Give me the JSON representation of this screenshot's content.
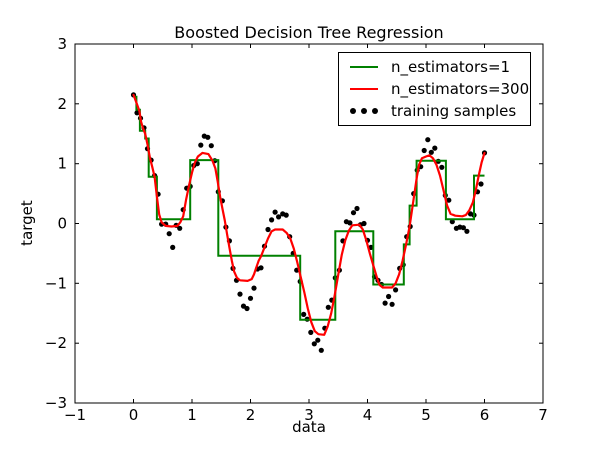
{
  "window": {
    "background": "#ffffff"
  },
  "chart_data": {
    "type": "line+scatter",
    "title": "Boosted Decision Tree Regression",
    "xlabel": "data",
    "ylabel": "target",
    "axes": {
      "xlim": [
        -1,
        7
      ],
      "ylim": [
        -3,
        3
      ],
      "xticks": {
        "values": [
          -1,
          0,
          1,
          2,
          3,
          4,
          5,
          6,
          7
        ],
        "labels": [
          "−1",
          "0",
          "1",
          "2",
          "3",
          "4",
          "5",
          "6",
          "7"
        ]
      },
      "yticks": {
        "values": [
          -3,
          -2,
          -1,
          0,
          1,
          2,
          3
        ],
        "labels": [
          "−3",
          "−2",
          "−1",
          "0",
          "1",
          "2",
          "3"
        ]
      },
      "grid": false,
      "frame_color": "#000000"
    },
    "legend": {
      "position": "upper right",
      "items": [
        {
          "label": "n_estimators=1",
          "marker": "line",
          "color": "#008000"
        },
        {
          "label": "n_estimators=300",
          "marker": "line",
          "color": "#ff0000"
        },
        {
          "label": "training samples",
          "marker": "dots",
          "color": "#000000"
        }
      ]
    },
    "series": [
      {
        "name": "training samples",
        "type": "scatter",
        "color": "#000000",
        "marker_size": 5.2,
        "points": [
          [
            0.0,
            2.15
          ],
          [
            0.06,
            1.85
          ],
          [
            0.12,
            1.76
          ],
          [
            0.18,
            1.6
          ],
          [
            0.24,
            1.25
          ],
          [
            0.3,
            1.06
          ],
          [
            0.36,
            0.8
          ],
          [
            0.42,
            0.49
          ],
          [
            0.48,
            -0.01
          ],
          [
            0.55,
            -0.01
          ],
          [
            0.61,
            -0.17
          ],
          [
            0.67,
            -0.4
          ],
          [
            0.73,
            -0.03
          ],
          [
            0.79,
            -0.08
          ],
          [
            0.85,
            0.23
          ],
          [
            0.91,
            0.59
          ],
          [
            0.97,
            0.62
          ],
          [
            1.03,
            0.97
          ],
          [
            1.09,
            1.0
          ],
          [
            1.15,
            1.31
          ],
          [
            1.21,
            1.46
          ],
          [
            1.27,
            1.44
          ],
          [
            1.33,
            1.3
          ],
          [
            1.39,
            1.05
          ],
          [
            1.45,
            0.53
          ],
          [
            1.52,
            0.38
          ],
          [
            1.58,
            -0.06
          ],
          [
            1.64,
            -0.29
          ],
          [
            1.7,
            -0.75
          ],
          [
            1.76,
            -0.95
          ],
          [
            1.82,
            -1.18
          ],
          [
            1.88,
            -1.38
          ],
          [
            1.94,
            -1.42
          ],
          [
            2.0,
            -1.25
          ],
          [
            2.06,
            -1.08
          ],
          [
            2.12,
            -0.76
          ],
          [
            2.18,
            -0.74
          ],
          [
            2.24,
            -0.38
          ],
          [
            2.3,
            -0.1
          ],
          [
            2.36,
            0.06
          ],
          [
            2.42,
            0.19
          ],
          [
            2.48,
            0.11
          ],
          [
            2.55,
            0.16
          ],
          [
            2.61,
            0.14
          ],
          [
            2.67,
            -0.22
          ],
          [
            2.73,
            -0.5
          ],
          [
            2.79,
            -0.78
          ],
          [
            2.85,
            -0.97
          ],
          [
            2.91,
            -1.52
          ],
          [
            2.97,
            -1.6
          ],
          [
            3.03,
            -1.82
          ],
          [
            3.09,
            -2.01
          ],
          [
            3.15,
            -1.95
          ],
          [
            3.21,
            -2.12
          ],
          [
            3.27,
            -1.75
          ],
          [
            3.33,
            -1.4
          ],
          [
            3.39,
            -1.28
          ],
          [
            3.45,
            -0.91
          ],
          [
            3.52,
            -0.78
          ],
          [
            3.58,
            -0.29
          ],
          [
            3.64,
            0.03
          ],
          [
            3.7,
            0.01
          ],
          [
            3.76,
            0.18
          ],
          [
            3.82,
            0.25
          ],
          [
            3.88,
            -0.02
          ],
          [
            3.94,
            0.0
          ],
          [
            4.0,
            -0.28
          ],
          [
            4.06,
            -0.4
          ],
          [
            4.12,
            -0.89
          ],
          [
            4.18,
            -0.95
          ],
          [
            4.24,
            -1.02
          ],
          [
            4.3,
            -1.33
          ],
          [
            4.36,
            -1.22
          ],
          [
            4.42,
            -1.35
          ],
          [
            4.48,
            -1.11
          ],
          [
            4.55,
            -0.75
          ],
          [
            4.61,
            -0.69
          ],
          [
            4.67,
            -0.22
          ],
          [
            4.73,
            -0.05
          ],
          [
            4.79,
            0.5
          ],
          [
            4.85,
            0.89
          ],
          [
            4.91,
            0.95
          ],
          [
            4.97,
            1.22
          ],
          [
            5.03,
            1.4
          ],
          [
            5.09,
            1.19
          ],
          [
            5.15,
            1.26
          ],
          [
            5.21,
            1.04
          ],
          [
            5.27,
            0.94
          ],
          [
            5.33,
            0.47
          ],
          [
            5.39,
            0.39
          ],
          [
            5.45,
            0.03
          ],
          [
            5.52,
            -0.08
          ],
          [
            5.58,
            -0.06
          ],
          [
            5.64,
            -0.07
          ],
          [
            5.7,
            -0.13
          ],
          [
            5.76,
            0.16
          ],
          [
            5.82,
            0.14
          ],
          [
            5.88,
            0.53
          ],
          [
            5.94,
            0.66
          ],
          [
            6.0,
            1.18
          ]
        ]
      },
      {
        "name": "n_estimators=1",
        "type": "step",
        "color": "#008000",
        "line_width": 2,
        "steps": [
          [
            0.0,
            0.05,
            2.12
          ],
          [
            0.05,
            0.11,
            1.9
          ],
          [
            0.11,
            0.2,
            1.55
          ],
          [
            0.2,
            0.26,
            1.42
          ],
          [
            0.26,
            0.4,
            0.78
          ],
          [
            0.4,
            0.97,
            0.07
          ],
          [
            0.97,
            1.45,
            1.06
          ],
          [
            1.45,
            2.85,
            -0.54
          ],
          [
            2.85,
            3.45,
            -1.61
          ],
          [
            3.45,
            4.1,
            -0.13
          ],
          [
            4.1,
            4.62,
            -1.02
          ],
          [
            4.62,
            4.72,
            -0.35
          ],
          [
            4.72,
            4.84,
            0.3
          ],
          [
            4.84,
            5.34,
            1.05
          ],
          [
            5.34,
            5.82,
            0.07
          ],
          [
            5.82,
            6.0,
            0.8
          ]
        ]
      },
      {
        "name": "n_estimators=300",
        "type": "line",
        "color": "#ff0000",
        "line_width": 2.2,
        "points": [
          [
            0.0,
            2.15
          ],
          [
            0.05,
            2.02
          ],
          [
            0.1,
            1.88
          ],
          [
            0.13,
            1.7
          ],
          [
            0.16,
            1.6
          ],
          [
            0.2,
            1.5
          ],
          [
            0.24,
            1.32
          ],
          [
            0.28,
            1.1
          ],
          [
            0.32,
            0.95
          ],
          [
            0.36,
            0.78
          ],
          [
            0.4,
            0.45
          ],
          [
            0.44,
            0.15
          ],
          [
            0.48,
            0.02
          ],
          [
            0.55,
            -0.04
          ],
          [
            0.65,
            -0.05
          ],
          [
            0.75,
            -0.04
          ],
          [
            0.8,
            0.02
          ],
          [
            0.85,
            0.12
          ],
          [
            0.9,
            0.4
          ],
          [
            0.95,
            0.64
          ],
          [
            1.0,
            0.85
          ],
          [
            1.05,
            1.02
          ],
          [
            1.1,
            1.12
          ],
          [
            1.18,
            1.18
          ],
          [
            1.28,
            1.16
          ],
          [
            1.35,
            1.05
          ],
          [
            1.4,
            0.92
          ],
          [
            1.44,
            0.7
          ],
          [
            1.48,
            0.45
          ],
          [
            1.52,
            0.25
          ],
          [
            1.56,
            0.05
          ],
          [
            1.6,
            -0.18
          ],
          [
            1.64,
            -0.4
          ],
          [
            1.68,
            -0.62
          ],
          [
            1.72,
            -0.8
          ],
          [
            1.77,
            -0.91
          ],
          [
            1.82,
            -0.95
          ],
          [
            1.95,
            -0.96
          ],
          [
            2.02,
            -0.93
          ],
          [
            2.06,
            -0.85
          ],
          [
            2.1,
            -0.73
          ],
          [
            2.14,
            -0.62
          ],
          [
            2.18,
            -0.55
          ],
          [
            2.24,
            -0.4
          ],
          [
            2.3,
            -0.25
          ],
          [
            2.36,
            -0.13
          ],
          [
            2.42,
            -0.1
          ],
          [
            2.55,
            -0.1
          ],
          [
            2.62,
            -0.16
          ],
          [
            2.68,
            -0.25
          ],
          [
            2.74,
            -0.42
          ],
          [
            2.8,
            -0.65
          ],
          [
            2.86,
            -0.9
          ],
          [
            2.92,
            -1.15
          ],
          [
            2.98,
            -1.42
          ],
          [
            3.04,
            -1.65
          ],
          [
            3.1,
            -1.8
          ],
          [
            3.16,
            -1.85
          ],
          [
            3.26,
            -1.86
          ],
          [
            3.32,
            -1.72
          ],
          [
            3.38,
            -1.5
          ],
          [
            3.44,
            -1.2
          ],
          [
            3.5,
            -0.85
          ],
          [
            3.56,
            -0.52
          ],
          [
            3.62,
            -0.28
          ],
          [
            3.68,
            -0.12
          ],
          [
            3.74,
            -0.03
          ],
          [
            3.86,
            -0.02
          ],
          [
            3.92,
            -0.1
          ],
          [
            3.98,
            -0.28
          ],
          [
            4.04,
            -0.5
          ],
          [
            4.1,
            -0.7
          ],
          [
            4.16,
            -0.9
          ],
          [
            4.2,
            -1.02
          ],
          [
            4.26,
            -1.07
          ],
          [
            4.42,
            -1.07
          ],
          [
            4.48,
            -1.0
          ],
          [
            4.54,
            -0.85
          ],
          [
            4.6,
            -0.62
          ],
          [
            4.66,
            -0.35
          ],
          [
            4.72,
            -0.05
          ],
          [
            4.78,
            0.35
          ],
          [
            4.84,
            0.75
          ],
          [
            4.88,
            0.98
          ],
          [
            4.93,
            1.09
          ],
          [
            5.0,
            1.12
          ],
          [
            5.06,
            1.14
          ],
          [
            5.12,
            1.09
          ],
          [
            5.18,
            0.98
          ],
          [
            5.24,
            0.8
          ],
          [
            5.3,
            0.55
          ],
          [
            5.36,
            0.3
          ],
          [
            5.42,
            0.16
          ],
          [
            5.5,
            0.13
          ],
          [
            5.62,
            0.12
          ],
          [
            5.68,
            0.14
          ],
          [
            5.74,
            0.22
          ],
          [
            5.8,
            0.35
          ],
          [
            5.85,
            0.55
          ],
          [
            5.9,
            0.8
          ],
          [
            5.95,
            1.02
          ],
          [
            6.0,
            1.18
          ]
        ]
      }
    ]
  }
}
